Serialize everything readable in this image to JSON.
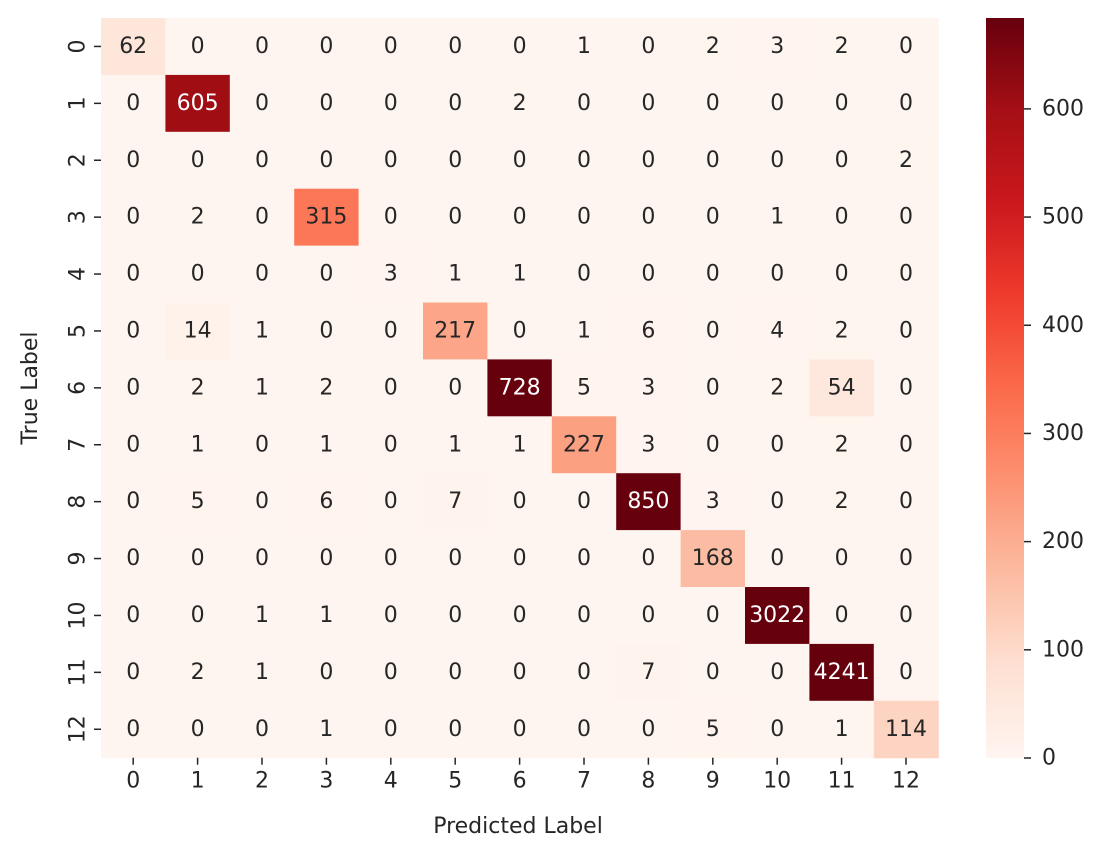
{
  "chart_data": {
    "type": "heatmap",
    "title": "",
    "xlabel": "Predicted Label",
    "ylabel": "True Label",
    "x_categories": [
      "0",
      "1",
      "2",
      "3",
      "4",
      "5",
      "6",
      "7",
      "8",
      "9",
      "10",
      "11",
      "12"
    ],
    "y_categories": [
      "0",
      "1",
      "2",
      "3",
      "4",
      "5",
      "6",
      "7",
      "8",
      "9",
      "10",
      "11",
      "12"
    ],
    "values": [
      [
        62,
        0,
        0,
        0,
        0,
        0,
        0,
        1,
        0,
        2,
        3,
        2,
        0
      ],
      [
        0,
        605,
        0,
        0,
        0,
        0,
        2,
        0,
        0,
        0,
        0,
        0,
        0
      ],
      [
        0,
        0,
        0,
        0,
        0,
        0,
        0,
        0,
        0,
        0,
        0,
        0,
        2
      ],
      [
        0,
        2,
        0,
        315,
        0,
        0,
        0,
        0,
        0,
        0,
        1,
        0,
        0
      ],
      [
        0,
        0,
        0,
        0,
        3,
        1,
        1,
        0,
        0,
        0,
        0,
        0,
        0
      ],
      [
        0,
        14,
        1,
        0,
        0,
        217,
        0,
        1,
        6,
        0,
        4,
        2,
        0
      ],
      [
        0,
        2,
        1,
        2,
        0,
        0,
        728,
        5,
        3,
        0,
        2,
        54,
        0
      ],
      [
        0,
        1,
        0,
        1,
        0,
        1,
        1,
        227,
        3,
        0,
        0,
        2,
        0
      ],
      [
        0,
        5,
        0,
        6,
        0,
        7,
        0,
        0,
        850,
        3,
        0,
        2,
        0
      ],
      [
        0,
        0,
        0,
        0,
        0,
        0,
        0,
        0,
        0,
        168,
        0,
        0,
        0
      ],
      [
        0,
        0,
        1,
        1,
        0,
        0,
        0,
        0,
        0,
        0,
        3022,
        0,
        0
      ],
      [
        0,
        2,
        1,
        0,
        0,
        0,
        0,
        0,
        7,
        0,
        0,
        4241,
        0
      ],
      [
        0,
        0,
        0,
        1,
        0,
        0,
        0,
        0,
        0,
        5,
        0,
        1,
        114
      ]
    ],
    "colormap": "Reds",
    "colorbar": {
      "ticks": [
        0,
        100,
        200,
        300,
        400,
        500,
        600
      ],
      "tick_labels": [
        "0",
        "100",
        "200",
        "300",
        "400",
        "500",
        "600"
      ],
      "range": [
        0,
        684
      ]
    },
    "colors": [
      "#fff5f0",
      "#fee0d2",
      "#fcbba1",
      "#fc9272",
      "#fb6a4a",
      "#ef3b2c",
      "#cb181d",
      "#a50f15",
      "#67000d"
    ],
    "annotation_dark_text_color": "#262626",
    "annotation_light_text_color": "#ffffff"
  }
}
